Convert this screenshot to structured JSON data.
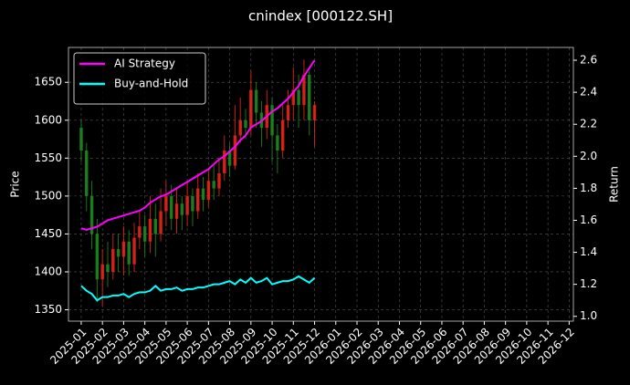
{
  "chart_data": {
    "type": "candlestick",
    "title": "cnindex [000122.SH]",
    "ylabel": "Price",
    "y2label": "Return",
    "xlim": [
      -0.6,
      23.2
    ],
    "xticks": [
      {
        "value": 0,
        "label": "2025-01"
      },
      {
        "value": 1,
        "label": "2025-02"
      },
      {
        "value": 2,
        "label": "2025-03"
      },
      {
        "value": 3,
        "label": "2025-04"
      },
      {
        "value": 4,
        "label": "2025-05"
      },
      {
        "value": 5,
        "label": "2025-06"
      },
      {
        "value": 6,
        "label": "2025-07"
      },
      {
        "value": 7,
        "label": "2025-08"
      },
      {
        "value": 8,
        "label": "2025-09"
      },
      {
        "value": 9,
        "label": "2025-10"
      },
      {
        "value": 10,
        "label": "2025-11"
      },
      {
        "value": 11,
        "label": "2025-12"
      },
      {
        "value": 12,
        "label": "2026-01"
      },
      {
        "value": 13,
        "label": "2026-02"
      },
      {
        "value": 14,
        "label": "2026-03"
      },
      {
        "value": 15,
        "label": "2026-04"
      },
      {
        "value": 16,
        "label": "2026-05"
      },
      {
        "value": 17,
        "label": "2026-06"
      },
      {
        "value": 18,
        "label": "2026-07"
      },
      {
        "value": 19,
        "label": "2026-08"
      },
      {
        "value": 20,
        "label": "2026-09"
      },
      {
        "value": 21,
        "label": "2026-10"
      },
      {
        "value": 22,
        "label": "2026-11"
      },
      {
        "value": 23,
        "label": "2026-12"
      }
    ],
    "ylim": [
      1335,
      1696
    ],
    "yticks": [
      1350,
      1400,
      1450,
      1500,
      1550,
      1600,
      1650
    ],
    "y2lim": [
      0.97,
      2.68
    ],
    "y2ticks": [
      {
        "value": 1,
        "label": "1.0"
      },
      1.2,
      1.4,
      1.6,
      1.8,
      {
        "value": 2,
        "label": "2.0"
      },
      2.2,
      2.4,
      2.6
    ],
    "grid": true,
    "legend": "upper left",
    "x": [
      0,
      0.25,
      0.5,
      0.75,
      1,
      1.25,
      1.5,
      1.75,
      2,
      2.25,
      2.5,
      2.75,
      3,
      3.25,
      3.5,
      3.75,
      4,
      4.25,
      4.5,
      4.75,
      5,
      5.25,
      5.5,
      5.75,
      6,
      6.25,
      6.5,
      6.75,
      7,
      7.25,
      7.5,
      7.75,
      8,
      8.25,
      8.5,
      8.75,
      9,
      9.25,
      9.5,
      9.75,
      10,
      10.25,
      10.5,
      10.75,
      11
    ],
    "ohlc": {
      "up_color": "#e8261a",
      "down_color": "#1f8a1f",
      "open": [
        1590,
        1560,
        1500,
        1450,
        1390,
        1410,
        1400,
        1430,
        1420,
        1440,
        1410,
        1445,
        1460,
        1440,
        1470,
        1450,
        1480,
        1500,
        1470,
        1490,
        1475,
        1500,
        1480,
        1510,
        1495,
        1520,
        1510,
        1530,
        1560,
        1540,
        1580,
        1600,
        1590,
        1640,
        1610,
        1590,
        1620,
        1580,
        1560,
        1600,
        1620,
        1640,
        1620,
        1660,
        1600
      ],
      "high": [
        1600,
        1570,
        1520,
        1470,
        1430,
        1440,
        1450,
        1450,
        1460,
        1455,
        1465,
        1480,
        1475,
        1500,
        1490,
        1510,
        1520,
        1515,
        1510,
        1500,
        1520,
        1510,
        1530,
        1525,
        1535,
        1540,
        1550,
        1580,
        1570,
        1620,
        1630,
        1615,
        1665,
        1650,
        1625,
        1640,
        1630,
        1595,
        1620,
        1640,
        1670,
        1660,
        1680,
        1665,
        1625
      ],
      "low": [
        1545,
        1480,
        1430,
        1360,
        1355,
        1380,
        1390,
        1400,
        1395,
        1395,
        1400,
        1430,
        1420,
        1425,
        1420,
        1440,
        1460,
        1455,
        1450,
        1455,
        1460,
        1460,
        1470,
        1480,
        1485,
        1495,
        1500,
        1520,
        1525,
        1535,
        1570,
        1575,
        1580,
        1590,
        1565,
        1575,
        1545,
        1530,
        1550,
        1590,
        1600,
        1590,
        1600,
        1580,
        1565
      ],
      "close": [
        1560,
        1500,
        1450,
        1390,
        1410,
        1400,
        1430,
        1420,
        1440,
        1410,
        1445,
        1460,
        1440,
        1470,
        1450,
        1480,
        1500,
        1470,
        1490,
        1475,
        1500,
        1480,
        1510,
        1495,
        1520,
        1510,
        1530,
        1560,
        1540,
        1580,
        1600,
        1590,
        1640,
        1610,
        1590,
        1620,
        1580,
        1560,
        1600,
        1620,
        1640,
        1620,
        1660,
        1600,
        1620
      ]
    },
    "series": [
      {
        "name": "AI Strategy",
        "color": "#ff00ff",
        "axis": "y2",
        "values": [
          1.55,
          1.54,
          1.55,
          1.56,
          1.58,
          1.6,
          1.61,
          1.62,
          1.63,
          1.64,
          1.65,
          1.66,
          1.68,
          1.71,
          1.73,
          1.75,
          1.76,
          1.78,
          1.8,
          1.82,
          1.84,
          1.86,
          1.88,
          1.9,
          1.92,
          1.95,
          1.98,
          2.0,
          2.03,
          2.06,
          2.1,
          2.13,
          2.18,
          2.2,
          2.22,
          2.25,
          2.28,
          2.3,
          2.33,
          2.36,
          2.4,
          2.44,
          2.5,
          2.55,
          2.6
        ]
      },
      {
        "name": "Buy-and-Hold",
        "color": "#00ffff",
        "axis": "y2",
        "values": [
          1.19,
          1.16,
          1.14,
          1.1,
          1.12,
          1.12,
          1.13,
          1.13,
          1.14,
          1.12,
          1.14,
          1.15,
          1.15,
          1.16,
          1.19,
          1.16,
          1.17,
          1.17,
          1.18,
          1.16,
          1.17,
          1.17,
          1.18,
          1.18,
          1.19,
          1.2,
          1.2,
          1.21,
          1.22,
          1.2,
          1.23,
          1.21,
          1.24,
          1.21,
          1.22,
          1.24,
          1.2,
          1.21,
          1.22,
          1.22,
          1.23,
          1.25,
          1.23,
          1.21,
          1.24
        ]
      }
    ]
  }
}
